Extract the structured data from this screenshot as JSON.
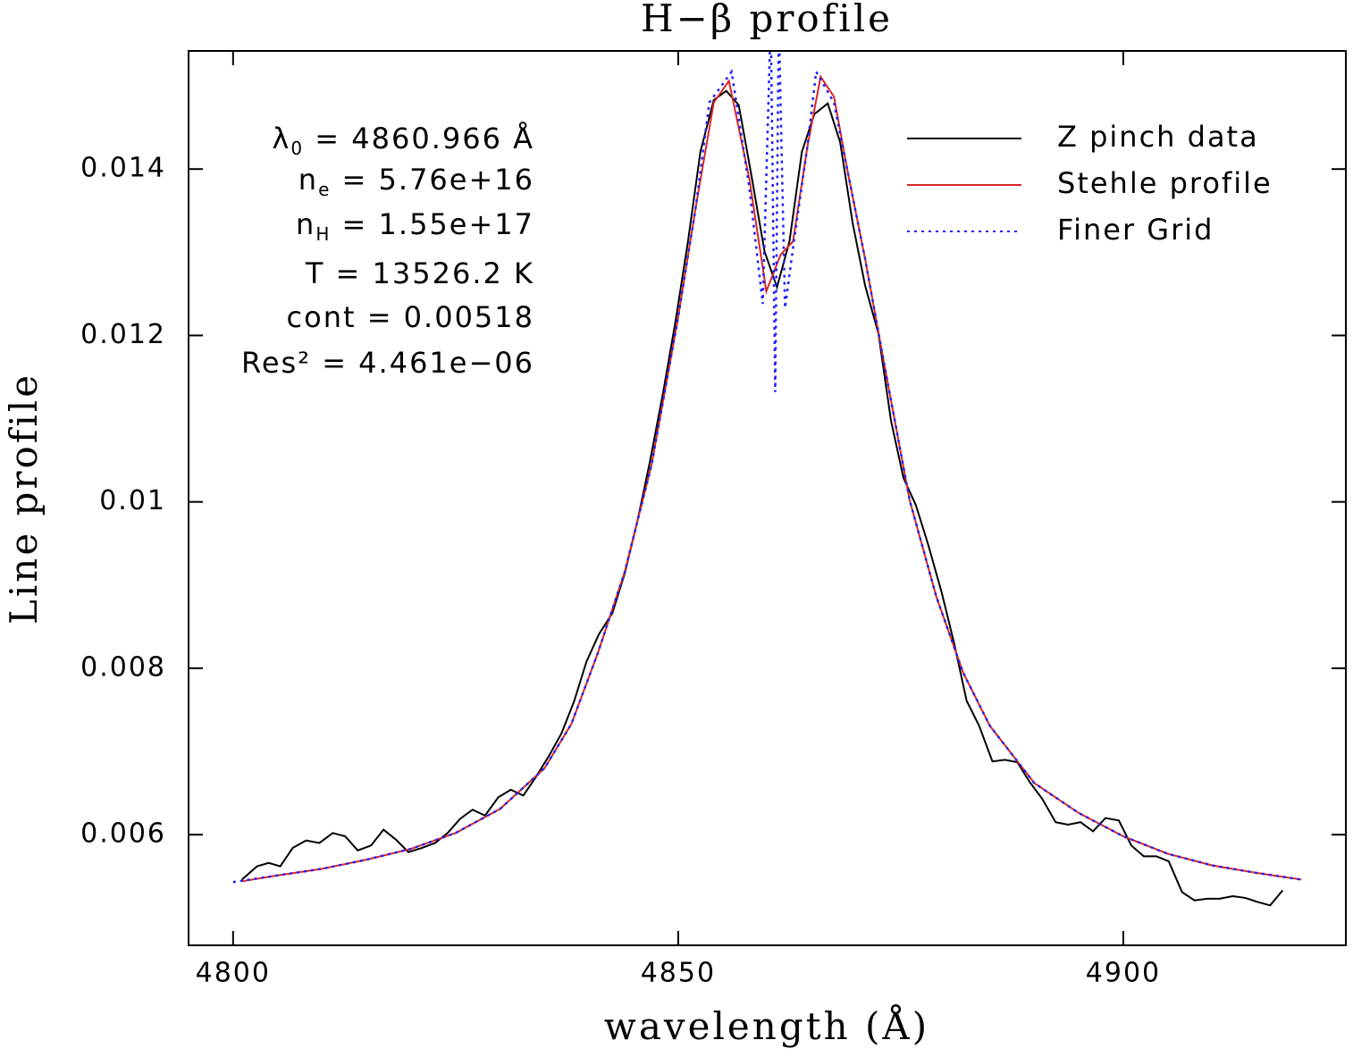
{
  "chart_data": {
    "type": "line",
    "title": "H−β profile",
    "xlabel": "wavelength (Å)",
    "ylabel": "Line profile",
    "xlim": [
      4795,
      4925
    ],
    "ylim": [
      0.00467,
      0.01542
    ],
    "xticks": [
      4800,
      4850,
      4900
    ],
    "yticks": [
      0.006,
      0.008,
      0.01,
      0.012,
      0.014
    ],
    "legend": "upper right",
    "annotations": [
      {
        "text": "λ",
        "sub": "0",
        "rest": " = 4860.966 Å"
      },
      {
        "text": "n",
        "sub": "e",
        "rest": " = 5.76e+16"
      },
      {
        "text": "n",
        "sub": "H",
        "rest": " = 1.55e+17"
      },
      {
        "text": "T = 13526.2 K"
      },
      {
        "text": "cont = 0.00518"
      },
      {
        "text": "Res² = 4.461e−06"
      }
    ],
    "series": [
      {
        "name": "Z pinch data",
        "color": "#000000",
        "linestyle": "solid",
        "x": [
          4801,
          4802.7,
          4804,
          4805.3,
          4806.7,
          4808.2,
          4809.7,
          4811.2,
          4812.6,
          4814,
          4815.5,
          4816.9,
          4818.3,
          4819.7,
          4821.2,
          4822.7,
          4824.1,
          4825.5,
          4826.9,
          4828.3,
          4829.8,
          4831.2,
          4832.6,
          4834,
          4835.5,
          4836.9,
          4838.3,
          4839.7,
          4841.1,
          4842.6,
          4844,
          4845.4,
          4846.8,
          4848.3,
          4849.7,
          4851.1,
          4852.5,
          4854,
          4855.4,
          4856.8,
          4858.2,
          4859.7,
          4861.1,
          4862.5,
          4863.9,
          4865.3,
          4866.8,
          4868.2,
          4869.6,
          4871,
          4872.5,
          4873.9,
          4875.3,
          4876.7,
          4878.1,
          4879.6,
          4881,
          4882.4,
          4883.8,
          4885.3,
          4886.7,
          4888.1,
          4889.5,
          4890.9,
          4892.4,
          4893.8,
          4895.2,
          4896.6,
          4898,
          4899.5,
          4900.9,
          4902.3,
          4903.7,
          4905.1,
          4906.6,
          4908,
          4909.4,
          4910.8,
          4912.3,
          4913.7,
          4915.1,
          4916.5,
          4917.9
        ],
        "values": [
          0.00546,
          0.00562,
          0.00566,
          0.00562,
          0.00584,
          0.00593,
          0.0059,
          0.00602,
          0.00598,
          0.00581,
          0.00587,
          0.00606,
          0.00594,
          0.00579,
          0.00584,
          0.0059,
          0.00602,
          0.00619,
          0.0063,
          0.00623,
          0.00645,
          0.00654,
          0.00647,
          0.00669,
          0.00695,
          0.00722,
          0.0076,
          0.00808,
          0.00841,
          0.00866,
          0.00914,
          0.00976,
          0.01047,
          0.01131,
          0.01217,
          0.01313,
          0.01421,
          0.01483,
          0.01494,
          0.01477,
          0.01394,
          0.01301,
          0.01258,
          0.01313,
          0.01421,
          0.01466,
          0.01479,
          0.01432,
          0.01335,
          0.0126,
          0.01202,
          0.01098,
          0.01029,
          0.00996,
          0.00948,
          0.00891,
          0.0083,
          0.00761,
          0.00731,
          0.00688,
          0.0069,
          0.00687,
          0.00663,
          0.00643,
          0.00615,
          0.00612,
          0.00615,
          0.00604,
          0.0062,
          0.00617,
          0.00587,
          0.00574,
          0.00574,
          0.00568,
          0.00531,
          0.00521,
          0.00523,
          0.00523,
          0.00526,
          0.00524,
          0.00519,
          0.00515,
          0.00533
        ]
      },
      {
        "name": "Stehle profile",
        "color": "#d62728",
        "linestyle": "solid",
        "x": [
          4801,
          4805,
          4810,
          4815,
          4820,
          4825,
          4830,
          4835,
          4838,
          4841,
          4844,
          4847,
          4850,
          4852,
          4854,
          4855.7,
          4858,
          4859.9,
          4861.5,
          4862.9,
          4864.5,
          4866,
          4867.5,
          4869,
          4871,
          4873,
          4876,
          4879,
          4882,
          4885,
          4890,
          4895,
          4900,
          4905,
          4910,
          4915,
          4920
        ],
        "values": [
          0.00544,
          0.00551,
          0.00559,
          0.0057,
          0.00583,
          0.00602,
          0.00631,
          0.0068,
          0.00733,
          0.00819,
          0.00916,
          0.01044,
          0.01222,
          0.01356,
          0.0148,
          0.01506,
          0.01388,
          0.01253,
          0.01297,
          0.01313,
          0.01426,
          0.01511,
          0.01487,
          0.01399,
          0.01292,
          0.01174,
          0.01002,
          0.00886,
          0.00795,
          0.00731,
          0.00662,
          0.00626,
          0.00598,
          0.00577,
          0.00563,
          0.00554,
          0.00546
        ]
      },
      {
        "name": "Finer Grid",
        "color": "#1f1fff",
        "linestyle": "dotted",
        "x": [
          4800,
          4805,
          4810,
          4815,
          4820,
          4825,
          4830,
          4835,
          4838,
          4841,
          4844,
          4847,
          4850,
          4852,
          4853.5,
          4856,
          4858,
          4859.5,
          4860.4,
          4860.9,
          4861.3,
          4862,
          4863,
          4864.5,
          4865.5,
          4867.5,
          4869,
          4871,
          4873,
          4876,
          4879,
          4882,
          4885,
          4890,
          4895,
          4900,
          4905,
          4910,
          4915,
          4920
        ],
        "values": [
          0.00543,
          0.00551,
          0.00559,
          0.0057,
          0.00583,
          0.00602,
          0.00631,
          0.0068,
          0.00733,
          0.00819,
          0.00916,
          0.01044,
          0.01222,
          0.01356,
          0.0148,
          0.01517,
          0.01377,
          0.01238,
          0.0158,
          0.01132,
          0.0158,
          0.01233,
          0.01313,
          0.01426,
          0.01517,
          0.0148,
          0.01399,
          0.01292,
          0.01174,
          0.01002,
          0.00886,
          0.00795,
          0.00731,
          0.00662,
          0.00626,
          0.00598,
          0.00577,
          0.00563,
          0.00554,
          0.00546
        ]
      }
    ]
  }
}
